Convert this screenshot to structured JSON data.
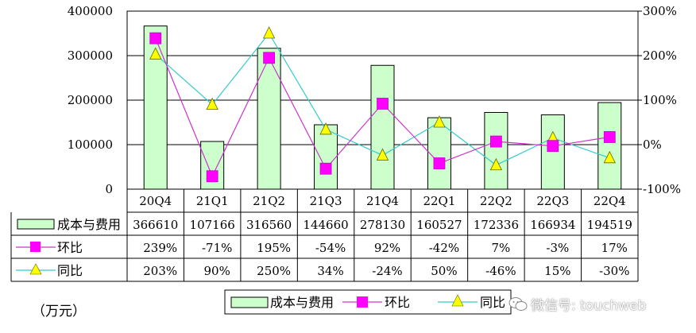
{
  "chart_data": {
    "type": "bar+line",
    "title": "",
    "unit_label": "（万元）",
    "categories": [
      "20Q4",
      "21Q1",
      "21Q2",
      "21Q3",
      "21Q4",
      "22Q1",
      "22Q2",
      "22Q3",
      "22Q4"
    ],
    "left_axis": {
      "ylim": [
        0,
        400000
      ],
      "ticks": [
        "0",
        "100000",
        "200000",
        "300000",
        "400000"
      ],
      "tick_values": [
        0,
        100000,
        200000,
        300000,
        400000
      ]
    },
    "right_axis": {
      "ylim": [
        -100,
        300
      ],
      "ticks": [
        "-100%",
        "0%",
        "100%",
        "200%",
        "300%"
      ],
      "tick_values": [
        -100,
        0,
        100,
        200,
        300
      ]
    },
    "series": [
      {
        "name": "成本与费用",
        "kind": "bar",
        "axis": "left",
        "color": "#ccffcc",
        "values": [
          366610,
          107166,
          316560,
          144660,
          278130,
          160527,
          172336,
          166934,
          194519
        ],
        "labels": [
          "366610",
          "107166",
          "316560",
          "144660",
          "278130",
          "160527",
          "172336",
          "166934",
          "194519"
        ]
      },
      {
        "name": "环比",
        "kind": "line",
        "axis": "right",
        "color": "#ff00ff",
        "marker": "square",
        "values": [
          239,
          -71,
          195,
          -54,
          92,
          -42,
          7,
          -3,
          17
        ],
        "labels": [
          "239%",
          "-71%",
          "195%",
          "-54%",
          "92%",
          "-42%",
          "7%",
          "-3%",
          "17%"
        ]
      },
      {
        "name": "同比",
        "kind": "line",
        "axis": "right",
        "color": "#33cccc",
        "marker": "triangle",
        "values": [
          203,
          90,
          250,
          34,
          -24,
          50,
          -46,
          15,
          -30
        ],
        "labels": [
          "203%",
          "90%",
          "250%",
          "34%",
          "-24%",
          "50%",
          "-46%",
          "15%",
          "-30%"
        ]
      }
    ],
    "legend": {
      "position": "bottom",
      "entries": [
        "成本与费用",
        "环比",
        "同比"
      ]
    },
    "grid": true
  },
  "watermark": {
    "text": "微信号: touchweb",
    "icon": "wechat-icon"
  },
  "colors": {
    "bar_fill": "#ccffcc",
    "bar_stroke": "#000000",
    "hb_line": "#cc33cc",
    "hb_marker": "#ff00ff",
    "tb_line": "#33cccc",
    "tb_marker": "#ffff00"
  }
}
